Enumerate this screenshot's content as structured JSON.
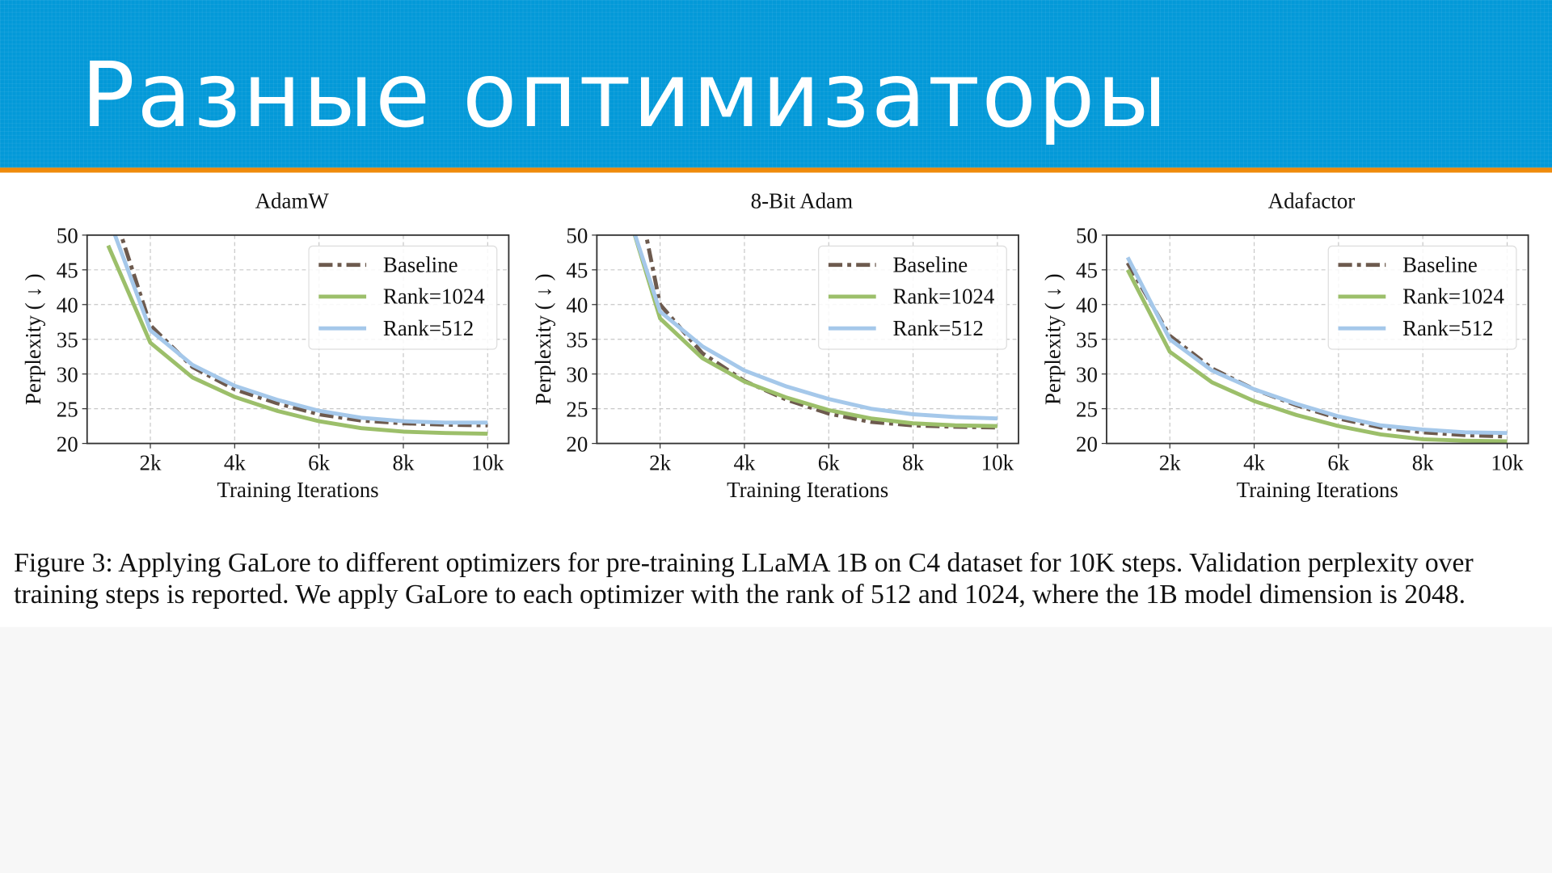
{
  "slide": {
    "title": "Разные оптимизаторы"
  },
  "caption": {
    "label": "Figure 3:",
    "text": "Applying GaLore to different optimizers for pre-training LLaMA 1B on C4 dataset for 10K steps. Validation perplexity over training steps is reported. We apply GaLore to each optimizer with the rank of 512 and 1024, where the 1B model dimension is 2048."
  },
  "colors": {
    "header": "#0399d8",
    "accent": "#ef8b0c",
    "baseline": "#6d5a4e",
    "rank1024": "#9cbf6a",
    "rank512": "#a5c8ea"
  },
  "chart_data": [
    {
      "type": "line",
      "title": "AdamW",
      "xlabel": "Training Iterations",
      "ylabel": "Perplexity ( ↓ )",
      "xlim": [
        0.5,
        10.5
      ],
      "ylim": [
        20,
        50
      ],
      "xticks": [
        2,
        4,
        6,
        8,
        10
      ],
      "xtick_labels": [
        "2k",
        "4k",
        "6k",
        "8k",
        "10k"
      ],
      "yticks": [
        20,
        25,
        30,
        35,
        40,
        45,
        50
      ],
      "ytick_labels": [
        "20",
        "25",
        "30",
        "35",
        "40",
        "45",
        "50"
      ],
      "grid": true,
      "legend": "top-right",
      "series": [
        {
          "name": "Baseline",
          "style": "dashdot",
          "color": "#6d5a4e",
          "x": [
            1.2,
            2,
            3,
            4,
            5,
            6,
            7,
            8,
            9,
            10
          ],
          "y": [
            52,
            37,
            31,
            27.8,
            25.8,
            24.2,
            23.3,
            22.9,
            22.7,
            22.6
          ]
        },
        {
          "name": "Rank=1024",
          "style": "solid",
          "color": "#9cbf6a",
          "x": [
            1,
            2,
            3,
            4,
            5,
            6,
            7,
            8,
            9,
            10
          ],
          "y": [
            48.5,
            34.5,
            29.5,
            26.7,
            24.7,
            23.2,
            22.2,
            21.7,
            21.5,
            21.4
          ]
        },
        {
          "name": "Rank=512",
          "style": "solid",
          "color": "#a5c8ea",
          "x": [
            1.1,
            2,
            3,
            4,
            5,
            6,
            7,
            8,
            9,
            10
          ],
          "y": [
            51,
            36.3,
            31.3,
            28.3,
            26.3,
            24.7,
            23.7,
            23.2,
            23.0,
            23.0
          ]
        }
      ]
    },
    {
      "type": "line",
      "title": "8-Bit Adam",
      "xlabel": "Training Iterations",
      "ylabel": "Perplexity ( ↓ )",
      "xlim": [
        0.5,
        10.5
      ],
      "ylim": [
        20,
        50
      ],
      "xticks": [
        2,
        4,
        6,
        8,
        10
      ],
      "xtick_labels": [
        "2k",
        "4k",
        "6k",
        "8k",
        "10k"
      ],
      "yticks": [
        20,
        25,
        30,
        35,
        40,
        45,
        50
      ],
      "ytick_labels": [
        "20",
        "25",
        "30",
        "35",
        "40",
        "45",
        "50"
      ],
      "grid": true,
      "legend": "top-right",
      "series": [
        {
          "name": "Baseline",
          "style": "dashdot",
          "color": "#6d5a4e",
          "x": [
            1.6,
            2,
            3,
            4,
            5,
            6,
            7,
            8,
            9,
            10
          ],
          "y": [
            52,
            40,
            33,
            29,
            26.3,
            24.3,
            23.1,
            22.6,
            22.4,
            22.3
          ]
        },
        {
          "name": "Rank=1024",
          "style": "solid",
          "color": "#9cbf6a",
          "x": [
            1.3,
            2,
            3,
            4,
            5,
            6,
            7,
            8,
            9,
            10
          ],
          "y": [
            52,
            38,
            32.3,
            28.9,
            26.6,
            24.8,
            23.6,
            22.9,
            22.6,
            22.5
          ]
        },
        {
          "name": "Rank=512",
          "style": "solid",
          "color": "#a5c8ea",
          "x": [
            1.3,
            2,
            3,
            4,
            5,
            6,
            7,
            8,
            9,
            10
          ],
          "y": [
            52,
            39,
            34,
            30.5,
            28.2,
            26.4,
            25,
            24.2,
            23.8,
            23.6
          ]
        }
      ]
    },
    {
      "type": "line",
      "title": "Adafactor",
      "xlabel": "Training Iterations",
      "ylabel": "Perplexity ( ↓ )",
      "xlim": [
        0.5,
        10.5
      ],
      "ylim": [
        20,
        50
      ],
      "xticks": [
        2,
        4,
        6,
        8,
        10
      ],
      "xtick_labels": [
        "2k",
        "4k",
        "6k",
        "8k",
        "10k"
      ],
      "yticks": [
        20,
        25,
        30,
        35,
        40,
        45,
        50
      ],
      "ytick_labels": [
        "20",
        "25",
        "30",
        "35",
        "40",
        "45",
        "50"
      ],
      "grid": true,
      "legend": "top-right",
      "series": [
        {
          "name": "Baseline",
          "style": "dashdot",
          "color": "#6d5a4e",
          "x": [
            1,
            2,
            3,
            4,
            5,
            6,
            7,
            8,
            9,
            10
          ],
          "y": [
            46,
            35.5,
            30.8,
            27.8,
            25.5,
            23.6,
            22.3,
            21.6,
            21.2,
            21.0
          ]
        },
        {
          "name": "Rank=1024",
          "style": "solid",
          "color": "#9cbf6a",
          "x": [
            1,
            2,
            3,
            4,
            5,
            6,
            7,
            8,
            9,
            10
          ],
          "y": [
            45,
            33.2,
            28.8,
            26.1,
            24.1,
            22.5,
            21.3,
            20.6,
            20.4,
            20.3
          ]
        },
        {
          "name": "Rank=512",
          "style": "solid",
          "color": "#a5c8ea",
          "x": [
            1,
            2,
            3,
            4,
            5,
            6,
            7,
            8,
            9,
            10
          ],
          "y": [
            46.8,
            35,
            30.5,
            27.8,
            25.7,
            23.9,
            22.6,
            22,
            21.6,
            21.5
          ]
        }
      ]
    }
  ]
}
